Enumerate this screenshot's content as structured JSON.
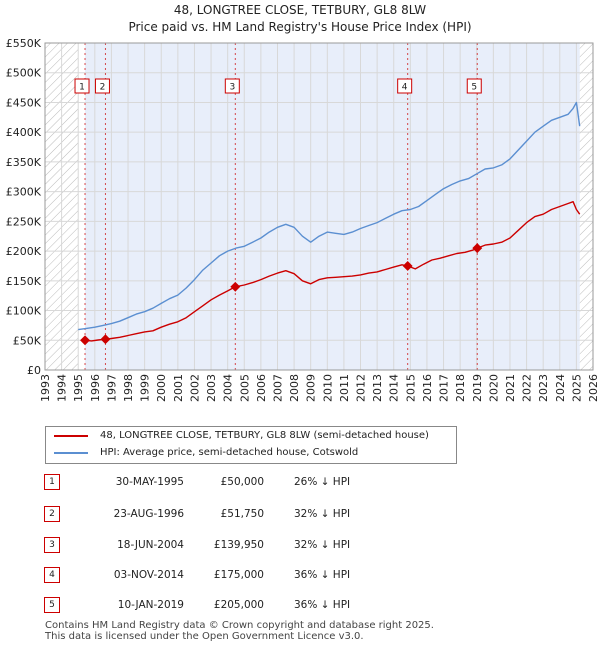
{
  "chart_data": {
    "type": "line",
    "title": "48, LONGTREE CLOSE, TETBURY, GL8 8LW",
    "subtitle": "Price paid vs. HM Land Registry's House Price Index (HPI)",
    "xlim": [
      1993,
      2026
    ],
    "ylim": [
      0,
      550000
    ],
    "x_ticks": [
      "1993",
      "1994",
      "1995",
      "1996",
      "1997",
      "1998",
      "1999",
      "2000",
      "2001",
      "2002",
      "2003",
      "2004",
      "2005",
      "2006",
      "2007",
      "2008",
      "2009",
      "2010",
      "2011",
      "2012",
      "2013",
      "2014",
      "2015",
      "2016",
      "2017",
      "2018",
      "2019",
      "2020",
      "2021",
      "2022",
      "2023",
      "2024",
      "2025",
      "2026"
    ],
    "y_ticks": [
      {
        "value": 0,
        "label": "£0"
      },
      {
        "value": 50000,
        "label": "£50K"
      },
      {
        "value": 100000,
        "label": "£100K"
      },
      {
        "value": 150000,
        "label": "£150K"
      },
      {
        "value": 200000,
        "label": "£200K"
      },
      {
        "value": 250000,
        "label": "£250K"
      },
      {
        "value": 300000,
        "label": "£300K"
      },
      {
        "value": 350000,
        "label": "£350K"
      },
      {
        "value": 400000,
        "label": "£400K"
      },
      {
        "value": 450000,
        "label": "£450K"
      },
      {
        "value": 500000,
        "label": "£500K"
      },
      {
        "value": 550000,
        "label": "£550K"
      }
    ],
    "hatched_ranges": [
      [
        1993,
        1995.0
      ],
      [
        2025.2,
        2026
      ]
    ],
    "shaded_range": [
      1995.41,
      2025.2
    ],
    "series": [
      {
        "name": "48, LONGTREE CLOSE, TETBURY, GL8 8LW (semi-detached house)",
        "color": "#cc0000",
        "x": [
          1995.41,
          1995.8,
          1996.2,
          1996.64,
          1997.0,
          1997.5,
          1998.0,
          1998.5,
          1999.0,
          1999.5,
          2000.0,
          2000.5,
          2001.0,
          2001.5,
          2002.0,
          2002.5,
          2003.0,
          2003.5,
          2004.0,
          2004.46,
          2005.0,
          2005.5,
          2006.0,
          2006.5,
          2007.0,
          2007.5,
          2008.0,
          2008.5,
          2009.0,
          2009.5,
          2010.0,
          2010.5,
          2011.0,
          2011.5,
          2012.0,
          2012.5,
          2013.0,
          2013.5,
          2014.0,
          2014.5,
          2014.84,
          2015.3,
          2015.8,
          2016.3,
          2016.8,
          2017.3,
          2017.8,
          2018.3,
          2018.8,
          2019.03,
          2019.5,
          2020.0,
          2020.5,
          2021.0,
          2021.5,
          2022.0,
          2022.5,
          2023.0,
          2023.5,
          2024.0,
          2024.5,
          2024.8,
          2025.0,
          2025.2
        ],
        "values": [
          50000,
          49000,
          50500,
          51750,
          53000,
          55000,
          58000,
          61000,
          64000,
          66000,
          72000,
          77000,
          81000,
          88000,
          98000,
          108000,
          118000,
          126000,
          133000,
          139950,
          143000,
          147000,
          152000,
          158000,
          163000,
          167000,
          162000,
          150000,
          145000,
          152000,
          155000,
          156000,
          157000,
          158000,
          160000,
          163000,
          165000,
          169000,
          173000,
          177000,
          175000,
          170000,
          178000,
          185000,
          188000,
          192000,
          196000,
          198000,
          202000,
          205000,
          210000,
          212000,
          215000,
          222000,
          235000,
          248000,
          258000,
          262000,
          270000,
          275000,
          280000,
          283000,
          270000,
          262000
        ]
      },
      {
        "name": "HPI: Average price, semi-detached house, Cotswold",
        "color": "#5b8fd1",
        "x": [
          1995.0,
          1995.5,
          1996.0,
          1996.5,
          1997.0,
          1997.5,
          1998.0,
          1998.5,
          1999.0,
          1999.5,
          2000.0,
          2000.5,
          2001.0,
          2001.5,
          2002.0,
          2002.5,
          2003.0,
          2003.5,
          2004.0,
          2004.5,
          2005.0,
          2005.5,
          2006.0,
          2006.5,
          2007.0,
          2007.5,
          2008.0,
          2008.5,
          2009.0,
          2009.5,
          2010.0,
          2010.5,
          2011.0,
          2011.5,
          2012.0,
          2012.5,
          2013.0,
          2013.5,
          2014.0,
          2014.5,
          2015.0,
          2015.5,
          2016.0,
          2016.5,
          2017.0,
          2017.5,
          2018.0,
          2018.5,
          2019.0,
          2019.5,
          2020.0,
          2020.5,
          2021.0,
          2021.5,
          2022.0,
          2022.5,
          2023.0,
          2023.5,
          2024.0,
          2024.5,
          2024.8,
          2025.0,
          2025.2
        ],
        "values": [
          68000,
          70000,
          72000,
          75000,
          78000,
          82000,
          88000,
          94000,
          98000,
          104000,
          112000,
          120000,
          126000,
          138000,
          152000,
          168000,
          180000,
          192000,
          200000,
          205000,
          208000,
          215000,
          222000,
          232000,
          240000,
          245000,
          240000,
          225000,
          215000,
          225000,
          232000,
          230000,
          228000,
          232000,
          238000,
          243000,
          248000,
          255000,
          262000,
          268000,
          270000,
          275000,
          285000,
          295000,
          305000,
          312000,
          318000,
          322000,
          330000,
          338000,
          340000,
          345000,
          355000,
          370000,
          385000,
          400000,
          410000,
          420000,
          425000,
          430000,
          440000,
          450000,
          410000
        ]
      }
    ],
    "sales": [
      {
        "n": "1",
        "x": 1995.41,
        "date": "30-MAY-1995",
        "price": "£50,000",
        "hpi": "26% ↓ HPI",
        "value": 50000
      },
      {
        "n": "2",
        "x": 1996.64,
        "date": "23-AUG-1996",
        "price": "£51,750",
        "hpi": "32% ↓ HPI",
        "value": 51750
      },
      {
        "n": "3",
        "x": 2004.46,
        "date": "18-JUN-2004",
        "price": "£139,950",
        "hpi": "32% ↓ HPI",
        "value": 139950
      },
      {
        "n": "4",
        "x": 2014.84,
        "date": "03-NOV-2014",
        "price": "£175,000",
        "hpi": "36% ↓ HPI",
        "value": 175000
      },
      {
        "n": "5",
        "x": 2019.03,
        "date": "10-JAN-2019",
        "price": "£205,000",
        "hpi": "36% ↓ HPI",
        "value": 205000
      }
    ]
  },
  "footer": {
    "line1": "Contains HM Land Registry data © Crown copyright and database right 2025.",
    "line2": "This data is licensed under the Open Government Licence v3.0."
  }
}
